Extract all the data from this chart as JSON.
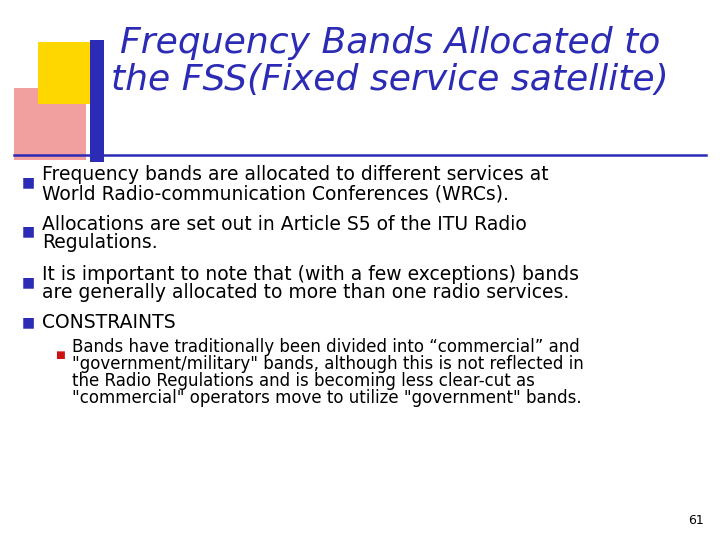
{
  "title_line1": "Frequency Bands Allocated to",
  "title_line2": "the FSS(Fixed service satellite)",
  "title_color": "#2B2BB5",
  "background_color": "#FFFFFF",
  "bullet_color": "#2B2BB5",
  "page_number": "61",
  "deco_yellow": "#FFD700",
  "deco_red": "#E85050",
  "deco_blue": "#2B2BB5",
  "separator_color": "#2B2BB5",
  "sub_bullet_color": "#CC1111",
  "title_fontsize": 26,
  "body_fontsize": 13.5,
  "sub_fontsize": 12.0
}
